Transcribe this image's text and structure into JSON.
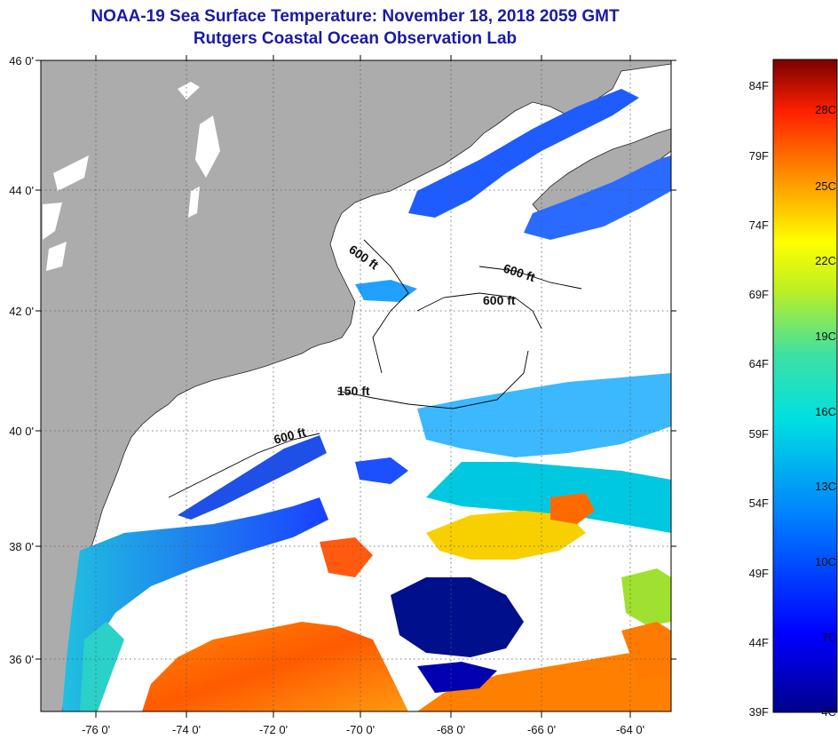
{
  "header": {
    "title": "NOAA-19 Sea Surface Temperature:  November 18, 2018 2059 GMT",
    "subtitle": "Rutgers Coastal Ocean Observation Lab"
  },
  "map": {
    "lat_labels": [
      "46 0'",
      "44 0'",
      "42 0'",
      "40 0'",
      "38 0'",
      "36 0'"
    ],
    "lon_labels": [
      "-76 0'",
      "-74 0'",
      "-72 0'",
      "-70 0'",
      "-68 0'",
      "-66 0'",
      "-64 0'"
    ],
    "lat_range": [
      35,
      46
    ],
    "lon_range": [
      -77,
      -63
    ],
    "contour_labels": {
      "c1": "600 ft",
      "c2": "600 ft",
      "c3": "600 ft",
      "c4": "150 ft",
      "c5": "600 ft"
    },
    "colors": {
      "land": "#acacac",
      "no_data": "#ffffff",
      "grid": "#555555"
    }
  },
  "colorbar": {
    "fahrenheit": [
      "84F",
      "79F",
      "74F",
      "69F",
      "64F",
      "59F",
      "54F",
      "49F",
      "44F",
      "39F"
    ],
    "celsius": [
      "28C",
      "25C",
      "22C",
      "19C",
      "16C",
      "13C",
      "10C",
      "7C",
      "4C"
    ],
    "range_c": [
      4,
      30
    ]
  }
}
